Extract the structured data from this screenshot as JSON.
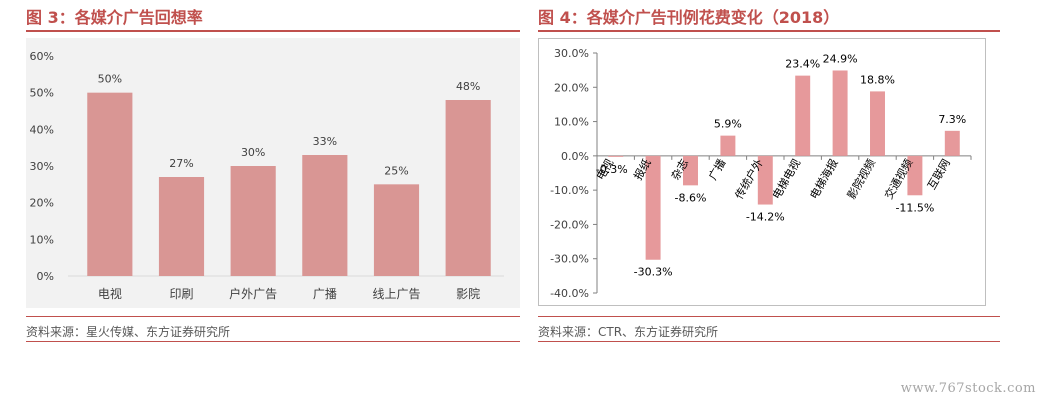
{
  "left_panel": {
    "title": "图 3：各媒介广告回想率",
    "source": "资料来源：星火传媒、东方证券研究所"
  },
  "right_panel": {
    "title": "图 4：各媒介广告刊例花费变化（2018）",
    "source": "资料来源：CTR、东方证券研究所"
  },
  "watermark": "www.767stock.com",
  "colors": {
    "accent": "#c0504d",
    "bar": "#d99694",
    "bar_right": "#e6999b"
  },
  "chart_data": [
    {
      "type": "bar",
      "title": "",
      "categories": [
        "电视",
        "印刷",
        "户外广告",
        "广播",
        "线上广告",
        "影院"
      ],
      "values": [
        50,
        27,
        30,
        33,
        25,
        48
      ],
      "value_labels": [
        "50%",
        "27%",
        "30%",
        "33%",
        "25%",
        "48%"
      ],
      "yticks": [
        "0%",
        "10%",
        "20%",
        "30%",
        "40%",
        "50%",
        "60%"
      ],
      "ylim": [
        0,
        60
      ],
      "grid": false
    },
    {
      "type": "bar",
      "title": "",
      "categories": [
        "电视",
        "报纸",
        "杂志",
        "广播",
        "传统户外",
        "电梯电视",
        "电梯海报",
        "影院视频",
        "交通视频",
        "互联网"
      ],
      "values": [
        -0.3,
        -30.3,
        -8.6,
        5.9,
        -14.2,
        23.4,
        24.9,
        18.8,
        -11.5,
        7.3
      ],
      "value_labels": [
        "-0.3%",
        "-30.3%",
        "-8.6%",
        "5.9%",
        "-14.2%",
        "23.4%",
        "24.9%",
        "18.8%",
        "-11.5%",
        "7.3%"
      ],
      "yticks": [
        "-40.0%",
        "-30.0%",
        "-20.0%",
        "-10.0%",
        "0.0%",
        "10.0%",
        "20.0%",
        "30.0%"
      ],
      "ylim": [
        -40,
        30
      ],
      "grid": false
    }
  ]
}
